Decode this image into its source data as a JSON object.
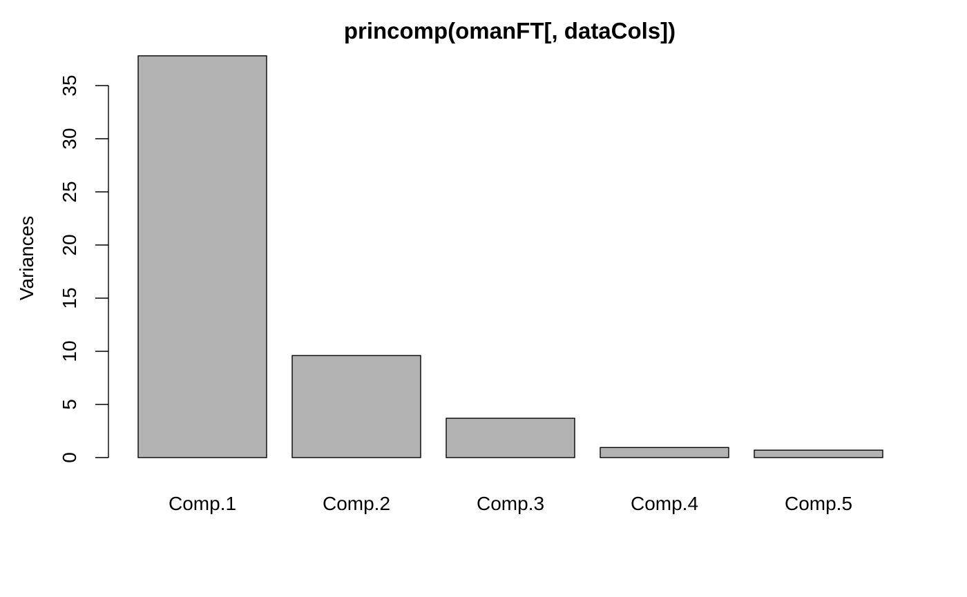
{
  "chart_data": {
    "type": "bar",
    "title": "princomp(omanFT[, dataCols])",
    "xlabel": "",
    "ylabel": "Variances",
    "categories": [
      "Comp.1",
      "Comp.2",
      "Comp.3",
      "Comp.4",
      "Comp.5"
    ],
    "values": [
      37.8,
      9.6,
      3.7,
      0.95,
      0.7
    ],
    "ylim": [
      0,
      37.8
    ],
    "yticks": [
      "0",
      "5",
      "10",
      "15",
      "20",
      "25",
      "30",
      "35"
    ],
    "bar_color": "#b3b3b3",
    "grid": false
  }
}
